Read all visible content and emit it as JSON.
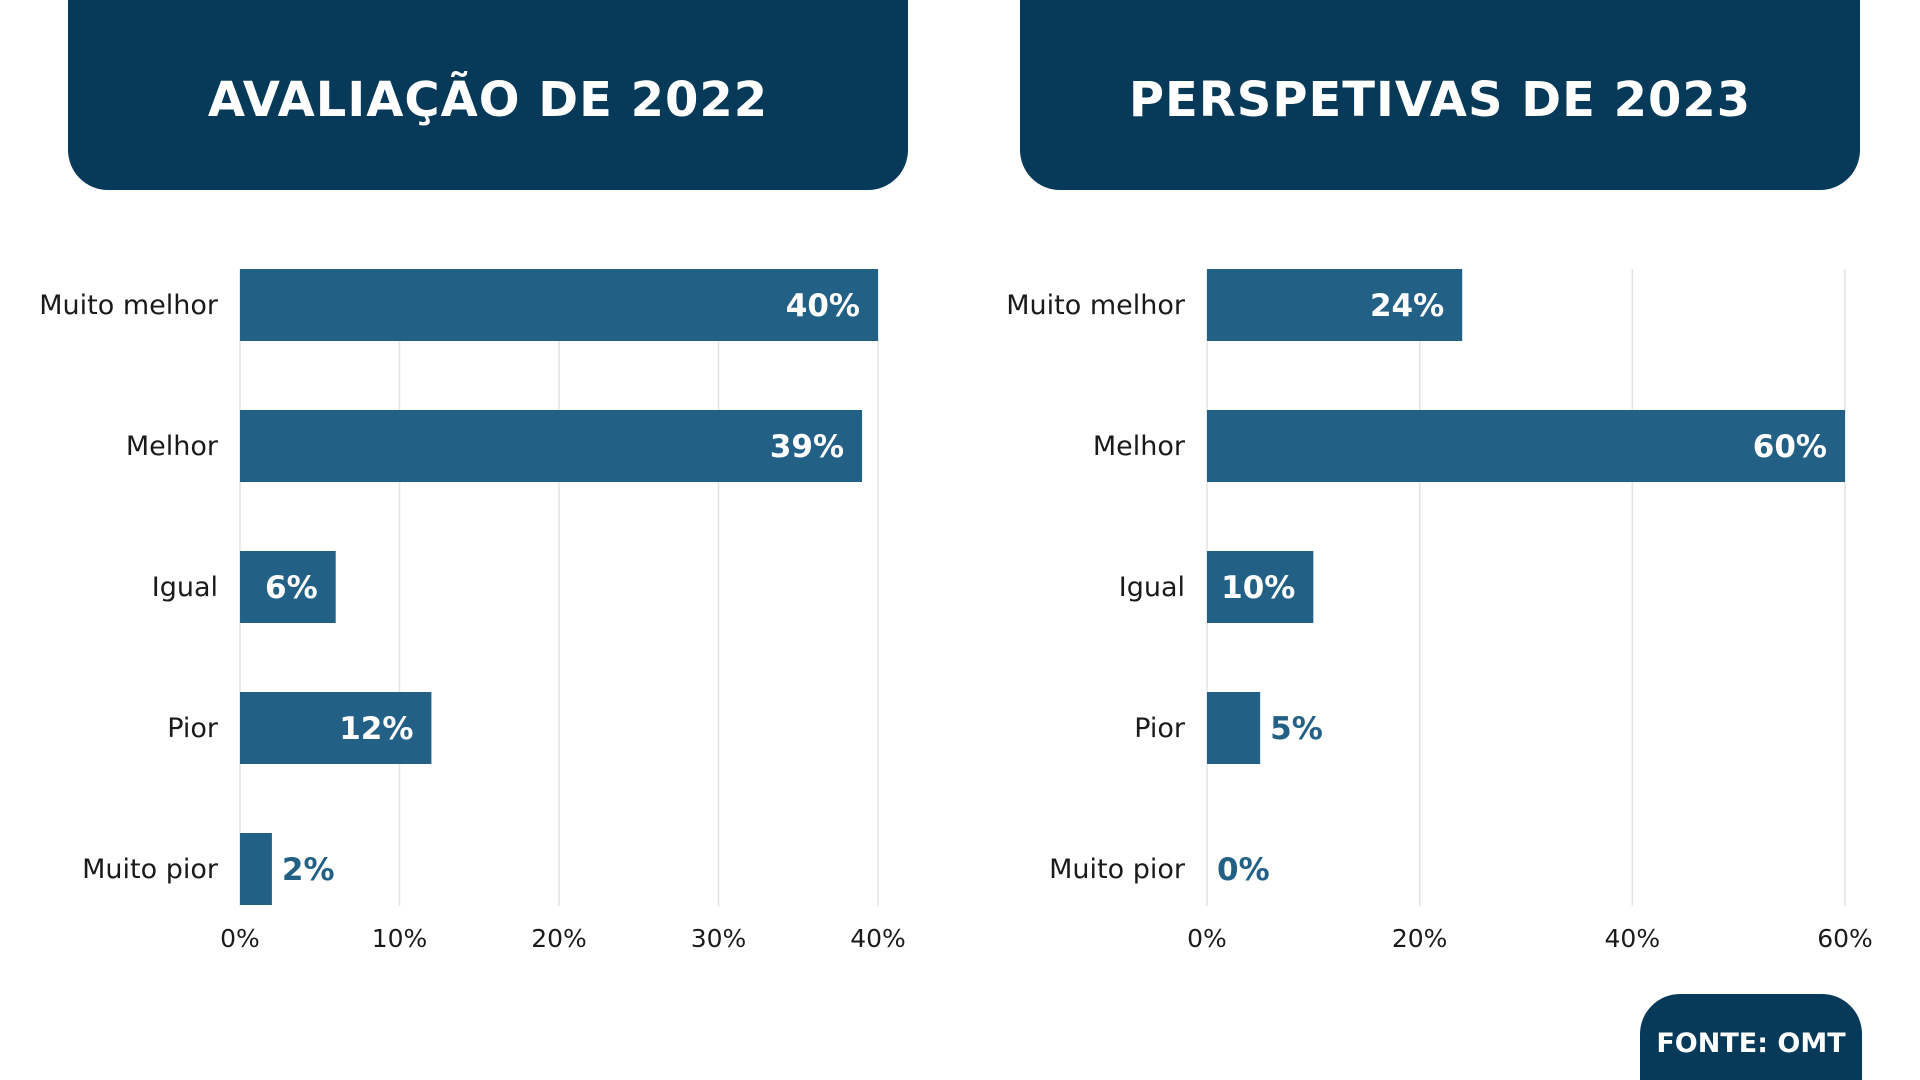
{
  "header": {
    "left_title": "AVALIAÇÃO DE 2022",
    "right_title": "PERSPETIVAS DE 2023"
  },
  "source": "FONTE: OMT",
  "colors": {
    "header_bg": "#063a58",
    "bar": "#226185",
    "grid": "#e3e3e3",
    "label_inside": "#ffffff",
    "label_outside": "#226185"
  },
  "chart_data": [
    {
      "type": "bar",
      "orientation": "horizontal",
      "categories": [
        "Muito melhor",
        "Melhor",
        "Igual",
        "Pior",
        "Muito pior"
      ],
      "values": [
        40,
        39,
        6,
        12,
        2
      ],
      "value_labels": [
        "40%",
        "39%",
        "6%",
        "12%",
        "2%"
      ],
      "xlim": [
        0,
        40
      ],
      "ticks": [
        0,
        10,
        20,
        30,
        40
      ],
      "tick_labels": [
        "0%",
        "10%",
        "20%",
        "30%",
        "40%"
      ],
      "grid": true
    },
    {
      "type": "bar",
      "orientation": "horizontal",
      "categories": [
        "Muito melhor",
        "Melhor",
        "Igual",
        "Pior",
        "Muito pior"
      ],
      "values": [
        24,
        60,
        10,
        5,
        0
      ],
      "value_labels": [
        "24%",
        "60%",
        "10%",
        "5%",
        "0%"
      ],
      "xlim": [
        0,
        60
      ],
      "ticks": [
        0,
        20,
        40,
        60
      ],
      "tick_labels": [
        "0%",
        "20%",
        "40%",
        "60%"
      ],
      "grid": true
    }
  ]
}
